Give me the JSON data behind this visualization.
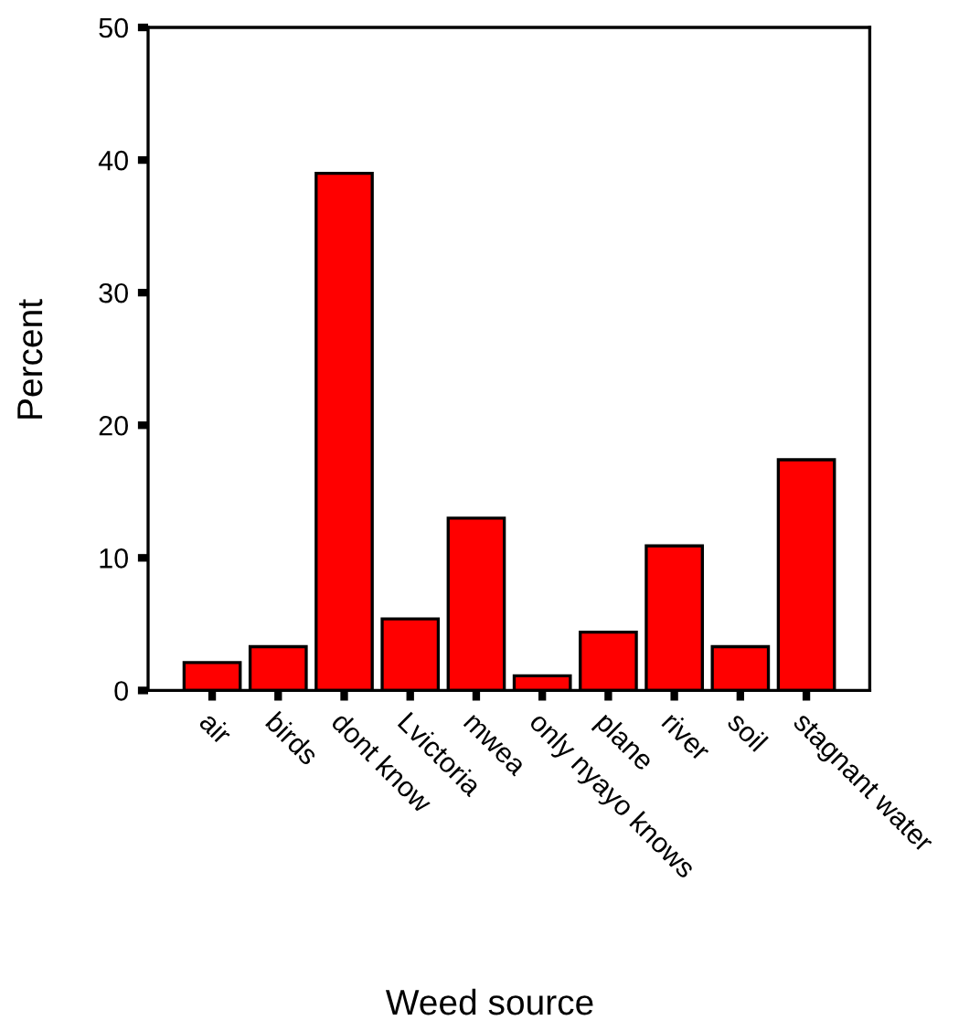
{
  "chart_data": {
    "type": "bar",
    "xlabel": "Weed source",
    "ylabel": "Percent",
    "categories": [
      "air",
      "birds",
      "dont know",
      "Lvictoria",
      "mwea",
      "only nyayo knows",
      "plane",
      "river",
      "soil",
      "stagnant water"
    ],
    "values": [
      2.1,
      3.3,
      39.0,
      5.4,
      13.0,
      1.1,
      4.4,
      10.9,
      3.3,
      17.4
    ],
    "color": "#ff0000",
    "ylim": [
      0,
      50
    ],
    "yticks": [
      0,
      10,
      20,
      30,
      40,
      50
    ],
    "grid": false,
    "legend": false
  }
}
